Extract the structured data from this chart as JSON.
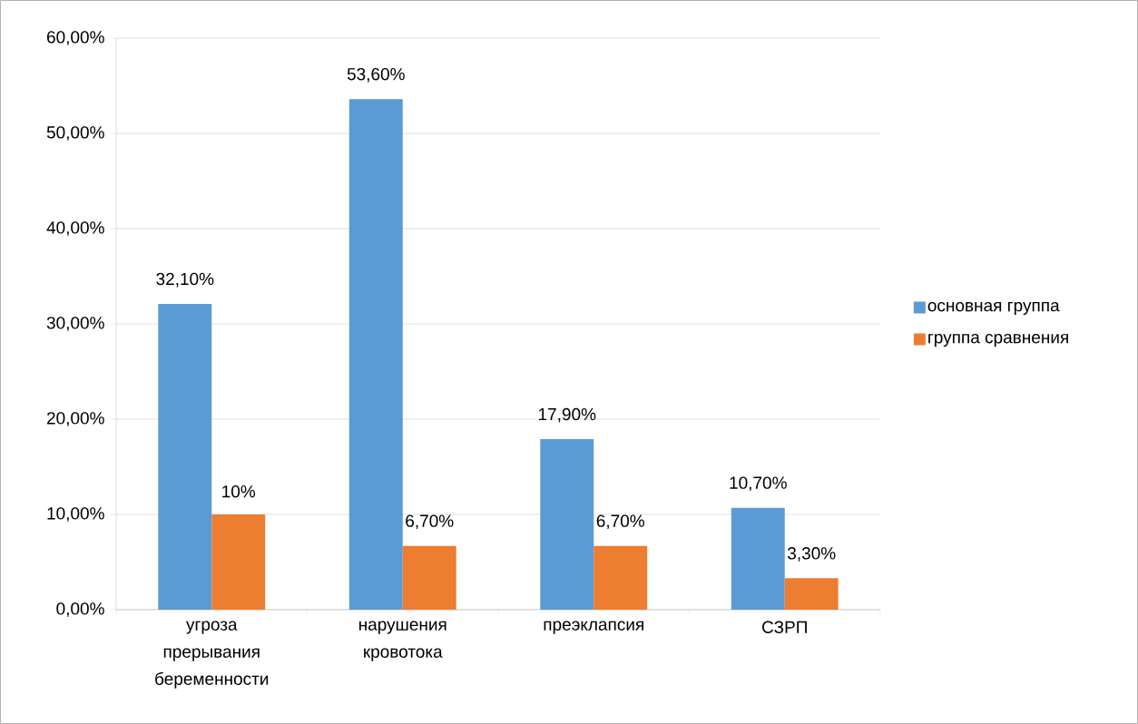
{
  "chart_data": {
    "type": "bar",
    "categories": [
      "угроза прерывания беременности",
      "нарушения кровотока",
      "преэклапсия",
      "СЗРП"
    ],
    "series": [
      {
        "name": "основная группа",
        "color": "#5b9bd5",
        "values": [
          32.1,
          53.6,
          17.9,
          10.7
        ],
        "value_labels": [
          "32,10%",
          "53,60%",
          "17,90%",
          "10,70%"
        ]
      },
      {
        "name": "группа сравнения",
        "color": "#ed7d31",
        "values": [
          10,
          6.7,
          6.7,
          3.3
        ],
        "value_labels": [
          "10%",
          "6,70%",
          "6,70%",
          "3,30%"
        ]
      }
    ],
    "ylim": [
      0,
      60
    ],
    "yticks": [
      {
        "value": 0,
        "label": "0,00%"
      },
      {
        "value": 10,
        "label": "10,00%"
      },
      {
        "value": 20,
        "label": "20,00%"
      },
      {
        "value": 30,
        "label": "30,00%"
      },
      {
        "value": 40,
        "label": "40,00%"
      },
      {
        "value": 50,
        "label": "50,00%"
      },
      {
        "value": 60,
        "label": "60,00%"
      }
    ],
    "grid": "y",
    "legend": "right"
  }
}
